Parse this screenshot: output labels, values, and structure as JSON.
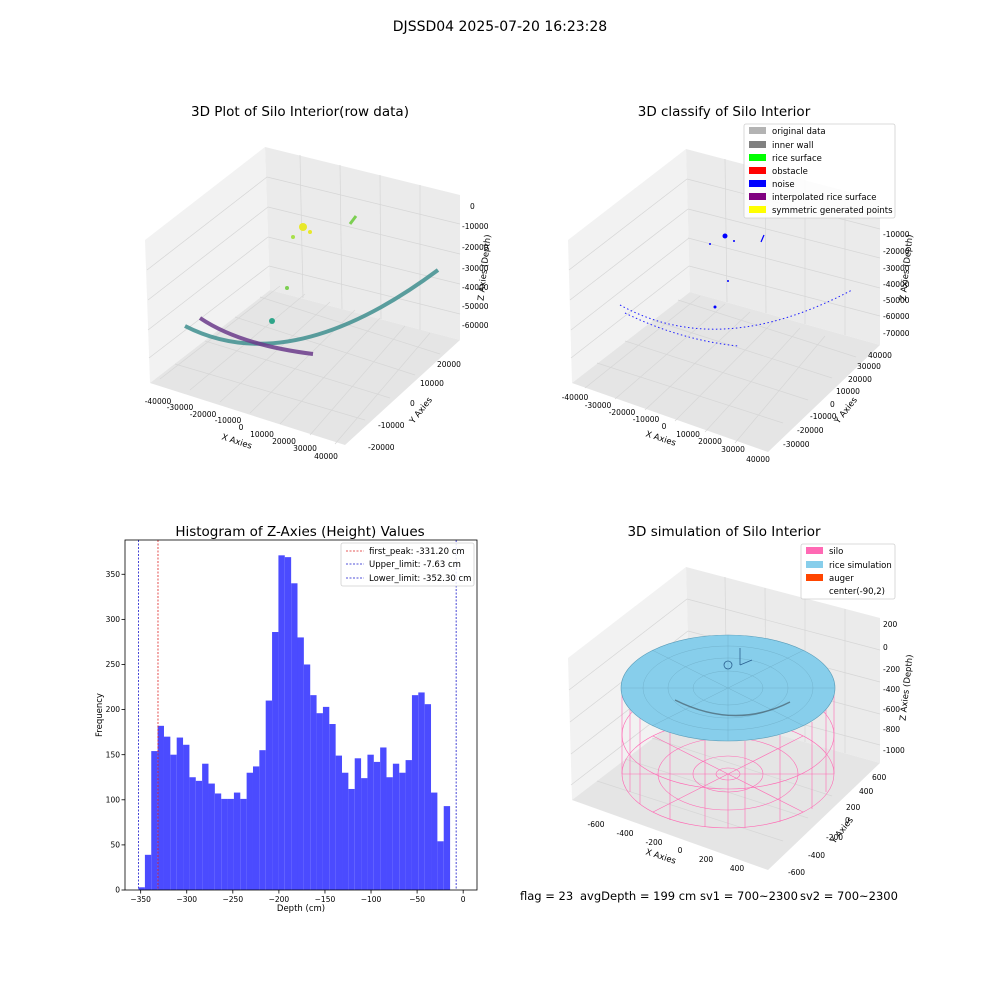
{
  "figure_title": "DJSSD04 2025-07-20 16:23:28",
  "colors": {
    "hist_bar": "#4b4bff",
    "first_peak_line": "#dd2222",
    "limit_lines": "#1a1acc",
    "silo": "#ff69b4",
    "rice": "#87ceeb",
    "auger": "#ff4500"
  },
  "footer": {
    "flag": "flag = 23",
    "avg_depth": "avgDepth = 199 cm",
    "sv1": "sv1 = 700~2300",
    "sv2": "sv2 = 700~2300"
  },
  "chart_data": [
    {
      "type": "scatter",
      "title": "3D Plot of Silo Interior(row data)",
      "xlabel": "X Axies",
      "ylabel": "Y Axies",
      "zlabel": "Z Axies (Depth)",
      "x_ticks": [
        "-40000",
        "-30000",
        "-20000",
        "-10000",
        "0",
        "10000",
        "20000",
        "30000",
        "40000"
      ],
      "y_ticks": [
        "-20000",
        "-10000",
        "0",
        "10000",
        "20000"
      ],
      "z_ticks": [
        "0",
        "-10000",
        "-20000",
        "-30000",
        "-40000",
        "-50000",
        "-60000"
      ],
      "series": [
        {
          "values": [
            [
              -35000,
              -15000,
              -58000
            ],
            [
              -25000,
              -5000,
              -62000
            ],
            [
              -10000,
              5000,
              -64000
            ],
            [
              5000,
              12000,
              -62000
            ],
            [
              20000,
              18000,
              -55000
            ],
            [
              35000,
              22000,
              -40000
            ]
          ]
        },
        {
          "values": [
            [
              -30000,
              -15000,
              -58000
            ],
            [
              -20000,
              -12000,
              -60000
            ],
            [
              -10000,
              -10000,
              -62000
            ],
            [
              0,
              -8000,
              -63000
            ]
          ]
        },
        {
          "values": [
            [
              -8000,
              10000,
              -12000
            ],
            [
              -6000,
              10000,
              -12000
            ]
          ]
        },
        {
          "values": [
            [
              15000,
              20000,
              -5000
            ]
          ]
        }
      ]
    },
    {
      "type": "scatter",
      "title": "3D classify of Silo Interior",
      "x_ticks": [
        "-40000",
        "-30000",
        "-20000",
        "-10000",
        "0",
        "10000",
        "20000",
        "30000",
        "40000"
      ],
      "y_ticks": [
        "-30000",
        "-20000",
        "-10000",
        "0",
        "10000",
        "20000",
        "30000",
        "40000"
      ],
      "z_ticks": [
        "-10000",
        "-20000",
        "-30000",
        "-40000",
        "-50000",
        "-60000",
        "-70000"
      ],
      "xlabel": "X Axies",
      "ylabel": "Y Axies",
      "zlabel": "Z Axies (Depth)",
      "legend": [
        "original data",
        "inner wall",
        "rice surface",
        "obstacle",
        "noise",
        "interpolated rice surface",
        "symmetric generated points"
      ],
      "legend_colors": [
        "#b3b3b3",
        "#808080",
        "#00ff00",
        "#ff0000",
        "#0000ff",
        "#800080",
        "#ffff00"
      ],
      "legend_placement": "top-right"
    },
    {
      "type": "bar",
      "title": "Histogram of Z-Axies (Height) Values",
      "xlabel": "Depth (cm)",
      "ylabel": "Frequency",
      "x_ticks": [
        -350,
        -300,
        -250,
        -200,
        -150,
        -100,
        -50,
        0
      ],
      "y_ticks": [
        0,
        50,
        100,
        150,
        200,
        250,
        300,
        350
      ],
      "xlim": [
        -367,
        15
      ],
      "ylim": [
        0,
        388
      ],
      "bin_start": -352.3,
      "bin_width": 6.9,
      "values": [
        3,
        39,
        154,
        182,
        170,
        150,
        169,
        161,
        125,
        121,
        140,
        118,
        107,
        101,
        101,
        108,
        101,
        130,
        137,
        155,
        210,
        286,
        371,
        369,
        340,
        280,
        250,
        216,
        196,
        203,
        184,
        149,
        130,
        112,
        146,
        124,
        150,
        142,
        158,
        125,
        140,
        130,
        144,
        216,
        219,
        206,
        108,
        54,
        93
      ],
      "vlines": [
        {
          "label": "first_peak: -331.20 cm",
          "x": -331.2,
          "role": "first_peak"
        },
        {
          "label": "Upper_limit: -7.63 cm",
          "x": -7.63,
          "role": "limit"
        },
        {
          "label": "Lower_limit: -352.30 cm",
          "x": -352.3,
          "role": "limit"
        }
      ],
      "legend_placement": "top-right"
    },
    {
      "type": "surface",
      "title": "3D simulation of Silo Interior",
      "xlabel": "X Axies",
      "ylabel": "Y Axies",
      "zlabel": "Z Axies (Depth)",
      "x_ticks": [
        "-600",
        "-400",
        "-200",
        "0",
        "200",
        "400"
      ],
      "y_ticks": [
        "-600",
        "-400",
        "-200",
        "0",
        "200",
        "400",
        "600"
      ],
      "z_ticks": [
        "200",
        "0",
        "-200",
        "-400",
        "-600",
        "-800",
        "-1000"
      ],
      "legend": [
        "silo",
        "rice simulation",
        "auger",
        "center(-90,2)"
      ],
      "legend_colors": [
        "#ff69b4",
        "#87ceeb",
        "#ff4500",
        ""
      ],
      "legend_placement": "top-right"
    }
  ]
}
